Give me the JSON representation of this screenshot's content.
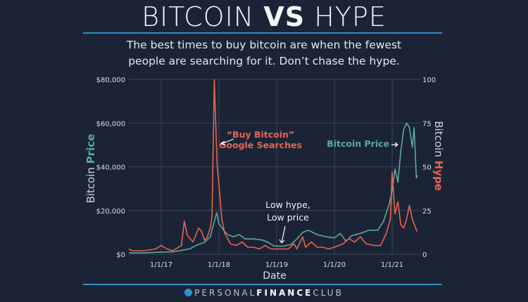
{
  "header": {
    "title_left": "BITCOIN",
    "title_mid": "VS",
    "title_right": "HYPE",
    "subtitle_line1": "The best times to buy bitcoin are when the fewest",
    "subtitle_line2": "people are searching for it. Don’t chase the hype."
  },
  "footer": {
    "brand_light1": "PERSONAL",
    "brand_bold": "FINANCE",
    "brand_light2": "CLUB"
  },
  "colors": {
    "background": "#1b2436",
    "price": "#5ba89c",
    "hype": "#e8634f",
    "accent": "#2e8fc9"
  },
  "chart_data": {
    "type": "line",
    "xlabel": "Date",
    "ylabel_left": {
      "word1": "Bitcoin",
      "word2": "Price"
    },
    "ylabel_right": {
      "word1": "Bitcoin",
      "word2": "Hype"
    },
    "x_ticks": [
      {
        "value": 2017,
        "label": "1/1/17"
      },
      {
        "value": 2018,
        "label": "1/1/18"
      },
      {
        "value": 2019,
        "label": "1/1/19"
      },
      {
        "value": 2020,
        "label": "1/1/20"
      },
      {
        "value": 2021,
        "label": "1/1/21"
      }
    ],
    "xlim": [
      2016.44,
      2021.5
    ],
    "y_left_ticks": [
      {
        "value": 0,
        "label": "$0"
      },
      {
        "value": 20000,
        "label": "$20,000"
      },
      {
        "value": 40000,
        "label": "$40,000"
      },
      {
        "value": 60000,
        "label": "$60,000"
      },
      {
        "value": 80000,
        "label": "$80,000"
      }
    ],
    "ylim_left": [
      0,
      80000
    ],
    "y_right_ticks": [
      {
        "value": 0,
        "label": "0"
      },
      {
        "value": 25,
        "label": "25"
      },
      {
        "value": 50,
        "label": "50"
      },
      {
        "value": 75,
        "label": "75"
      },
      {
        "value": 100,
        "label": "100"
      }
    ],
    "ylim_right": [
      0,
      100
    ],
    "grid": true,
    "series": [
      {
        "name": "Bitcoin Price",
        "axis": "left",
        "x": [
          2016.44,
          2016.7,
          2017.0,
          2017.2,
          2017.4,
          2017.5,
          2017.6,
          2017.75,
          2017.85,
          2017.92,
          2017.96,
          2018.0,
          2018.08,
          2018.15,
          2018.25,
          2018.35,
          2018.45,
          2018.6,
          2018.75,
          2018.85,
          2018.95,
          2019.1,
          2019.25,
          2019.35,
          2019.45,
          2019.55,
          2019.7,
          2019.85,
          2020.0,
          2020.1,
          2020.2,
          2020.3,
          2020.45,
          2020.6,
          2020.75,
          2020.85,
          2020.95,
          2021.0,
          2021.05,
          2021.1,
          2021.15,
          2021.2,
          2021.25,
          2021.3,
          2021.35,
          2021.38,
          2021.42,
          2021.44
        ],
        "y": [
          600,
          600,
          1000,
          1100,
          2000,
          2500,
          4000,
          5500,
          8000,
          15000,
          19000,
          14000,
          11000,
          9000,
          8000,
          9000,
          7000,
          7000,
          6500,
          5500,
          3800,
          3700,
          4500,
          7000,
          10000,
          11000,
          9000,
          8000,
          7500,
          9500,
          6000,
          8500,
          9500,
          11000,
          11000,
          15000,
          23000,
          29000,
          39000,
          33000,
          47000,
          57000,
          60000,
          58000,
          49000,
          58000,
          35000,
          36000
        ]
      },
      {
        "name": "\"Buy Bitcoin\" Google Searches",
        "axis": "right",
        "x": [
          2016.44,
          2016.5,
          2016.7,
          2016.9,
          2017.0,
          2017.1,
          2017.2,
          2017.35,
          2017.4,
          2017.45,
          2017.5,
          2017.55,
          2017.6,
          2017.65,
          2017.7,
          2017.75,
          2017.8,
          2017.85,
          2017.88,
          2017.92,
          2017.97,
          2018.0,
          2018.05,
          2018.1,
          2018.2,
          2018.3,
          2018.4,
          2018.5,
          2018.6,
          2018.7,
          2018.8,
          2018.9,
          2019.0,
          2019.2,
          2019.3,
          2019.35,
          2019.45,
          2019.5,
          2019.6,
          2019.7,
          2019.8,
          2019.9,
          2020.0,
          2020.15,
          2020.25,
          2020.35,
          2020.45,
          2020.55,
          2020.7,
          2020.8,
          2020.9,
          2020.97,
          2021.0,
          2021.05,
          2021.1,
          2021.15,
          2021.2,
          2021.25,
          2021.3,
          2021.35,
          2021.43
        ],
        "y": [
          3,
          2,
          2,
          3,
          5,
          3,
          2,
          5,
          19,
          11,
          9,
          7,
          11,
          15,
          13,
          8,
          10,
          15,
          22,
          100,
          50,
          40,
          20,
          12,
          6,
          5,
          7,
          4,
          4,
          3,
          5,
          3,
          3,
          3,
          6,
          3,
          10,
          4,
          7,
          4,
          4,
          3,
          4,
          6,
          9,
          7,
          10,
          6,
          5,
          5,
          12,
          20,
          47,
          23,
          30,
          17,
          15,
          20,
          28,
          20,
          13
        ]
      }
    ],
    "annotations": [
      {
        "text_line1": "“Buy Bitcoin”",
        "text_line2": "Google Searches",
        "series": "hype"
      },
      {
        "text": "Bitcoin Price",
        "series": "price"
      },
      {
        "text_line1": "Low hype,",
        "text_line2": "Low price"
      }
    ]
  }
}
